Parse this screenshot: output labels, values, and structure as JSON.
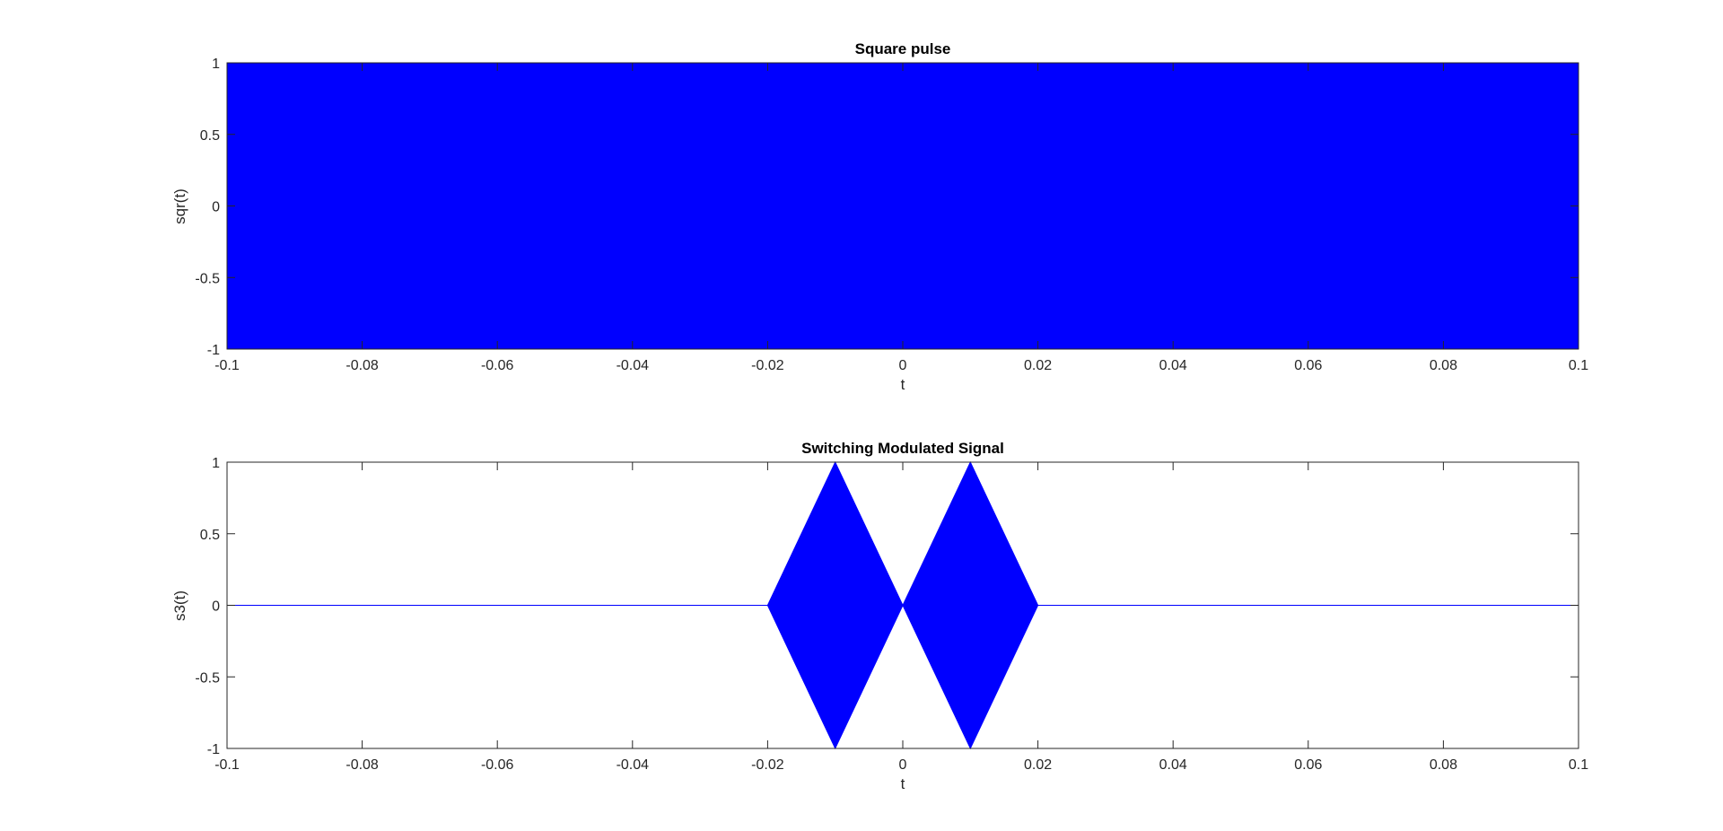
{
  "chart_data": [
    {
      "type": "area",
      "title": "Square pulse",
      "xlabel": "t",
      "ylabel": "sqr(t)",
      "xlim": [
        -0.1,
        0.1
      ],
      "ylim": [
        -1,
        1
      ],
      "xticks": [
        -0.1,
        -0.08,
        -0.06,
        -0.04,
        -0.02,
        0,
        0.02,
        0.04,
        0.06,
        0.08,
        0.1
      ],
      "xtick_labels": [
        "-0.1",
        "-0.08",
        "-0.06",
        "-0.04",
        "-0.02",
        "0",
        "0.02",
        "0.04",
        "0.06",
        "0.08",
        "0.1"
      ],
      "yticks": [
        -1,
        -0.5,
        0,
        0.5,
        1
      ],
      "ytick_labels": [
        "-1",
        "-0.5",
        "0",
        "0.5",
        "1"
      ],
      "grid": false,
      "series": [
        {
          "color": "#0000ff",
          "x": [
            -0.1,
            0.1,
            0.1,
            -0.1
          ],
          "y": [
            1,
            1,
            -1,
            -1
          ]
        }
      ]
    },
    {
      "type": "area",
      "title": "Switching Modulated Signal",
      "xlabel": "t",
      "ylabel": "s3(t)",
      "xlim": [
        -0.1,
        0.1
      ],
      "ylim": [
        -1,
        1
      ],
      "xticks": [
        -0.1,
        -0.08,
        -0.06,
        -0.04,
        -0.02,
        0,
        0.02,
        0.04,
        0.06,
        0.08,
        0.1
      ],
      "xtick_labels": [
        "-0.1",
        "-0.08",
        "-0.06",
        "-0.04",
        "-0.02",
        "0",
        "0.02",
        "0.04",
        "0.06",
        "0.08",
        "0.1"
      ],
      "yticks": [
        -1,
        -0.5,
        0,
        0.5,
        1
      ],
      "ytick_labels": [
        "-1",
        "-0.5",
        "0",
        "0.5",
        "1"
      ],
      "grid": false,
      "series": [
        {
          "color": "#0000ff",
          "x": [
            -0.1,
            -0.02,
            -0.01,
            0,
            0.01,
            0.02,
            0.1,
            0.02,
            0.01,
            0,
            -0.01,
            -0.02
          ],
          "y": [
            0,
            0,
            1,
            0,
            1,
            0,
            0,
            0,
            -1,
            0,
            -1,
            0
          ]
        }
      ]
    }
  ]
}
